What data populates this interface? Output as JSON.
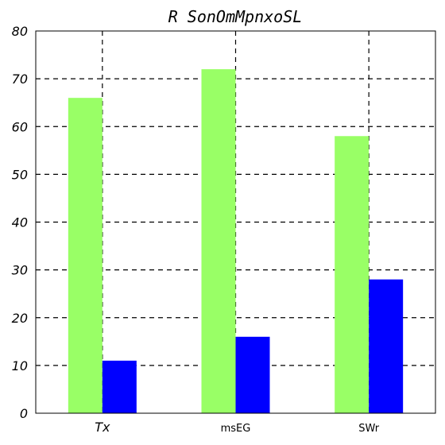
{
  "chart_data": {
    "type": "bar",
    "title": "R SonOmMpnxoSL",
    "xlabel": "",
    "ylabel": "",
    "categories": [
      "Tx",
      "msEG",
      "SWr"
    ],
    "series": [
      {
        "values": [
          66,
          72,
          58
        ],
        "color": "#99ff66"
      },
      {
        "values": [
          11,
          16,
          28
        ],
        "color": "#0000ff"
      }
    ],
    "ylim": [
      0,
      80
    ],
    "yticks": [
      0,
      10,
      20,
      30,
      40,
      50,
      60,
      70,
      80
    ],
    "grid": true,
    "legend": "none"
  }
}
